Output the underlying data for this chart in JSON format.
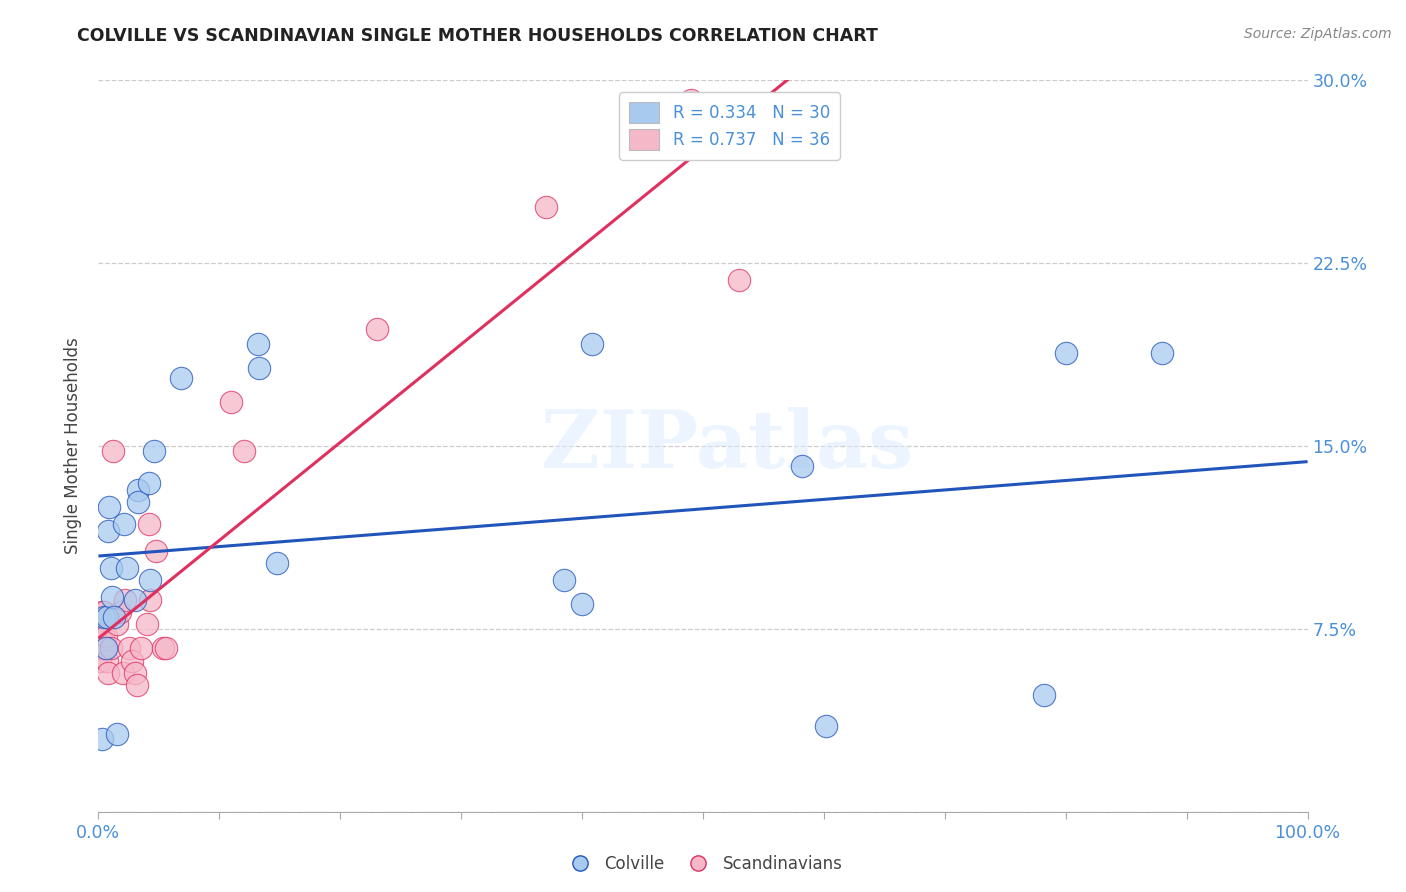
{
  "title": "COLVILLE VS SCANDINAVIAN SINGLE MOTHER HOUSEHOLDS CORRELATION CHART",
  "source": "Source: ZipAtlas.com",
  "ylabel": "Single Mother Households",
  "watermark": "ZIPatlas",
  "xlim": [
    0.0,
    1.0
  ],
  "ylim": [
    0.0,
    0.3
  ],
  "yticks": [
    0.0,
    0.075,
    0.15,
    0.225,
    0.3
  ],
  "colville_color": "#A8CAEF",
  "scandinavian_color": "#F5B8C8",
  "colville_line_color": "#2255BB",
  "scandinavian_line_color": "#E03060",
  "colville_R": 0.334,
  "colville_N": 30,
  "scandinavian_R": 0.737,
  "scandinavian_N": 36,
  "colville_x": [
    0.003,
    0.005,
    0.006,
    0.007,
    0.008,
    0.009,
    0.01,
    0.011,
    0.013,
    0.015,
    0.021,
    0.024,
    0.03,
    0.033,
    0.033,
    0.042,
    0.043,
    0.046,
    0.068,
    0.132,
    0.133,
    0.148,
    0.385,
    0.4,
    0.408,
    0.582,
    0.602,
    0.782,
    0.8,
    0.88
  ],
  "colville_y": [
    0.03,
    0.08,
    0.067,
    0.08,
    0.115,
    0.125,
    0.1,
    0.088,
    0.08,
    0.032,
    0.118,
    0.1,
    0.087,
    0.132,
    0.127,
    0.135,
    0.095,
    0.148,
    0.178,
    0.192,
    0.182,
    0.102,
    0.095,
    0.085,
    0.192,
    0.142,
    0.035,
    0.048,
    0.188,
    0.188
  ],
  "scandinavian_x": [
    0.001,
    0.001,
    0.001,
    0.002,
    0.002,
    0.003,
    0.003,
    0.004,
    0.005,
    0.005,
    0.006,
    0.007,
    0.008,
    0.01,
    0.012,
    0.015,
    0.018,
    0.02,
    0.022,
    0.025,
    0.028,
    0.03,
    0.032,
    0.035,
    0.04,
    0.042,
    0.043,
    0.048,
    0.053,
    0.056,
    0.11,
    0.12,
    0.23,
    0.37,
    0.49,
    0.53
  ],
  "scandinavian_y": [
    0.068,
    0.072,
    0.062,
    0.077,
    0.067,
    0.077,
    0.082,
    0.072,
    0.067,
    0.082,
    0.072,
    0.062,
    0.057,
    0.067,
    0.148,
    0.077,
    0.082,
    0.057,
    0.087,
    0.067,
    0.062,
    0.057,
    0.052,
    0.067,
    0.077,
    0.118,
    0.087,
    0.107,
    0.067,
    0.067,
    0.168,
    0.148,
    0.198,
    0.248,
    0.292,
    0.218
  ],
  "background_color": "#ffffff",
  "grid_color": "#cccccc"
}
